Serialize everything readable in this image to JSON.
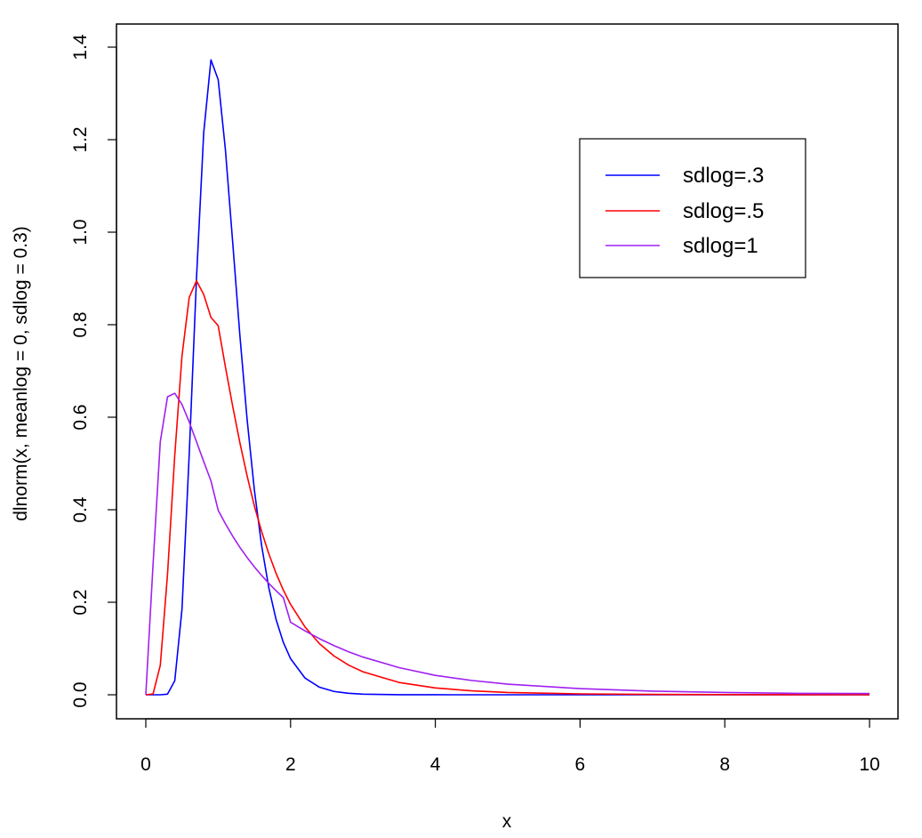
{
  "chart_data": {
    "type": "line",
    "title": "",
    "xlabel": "x",
    "ylabel": "dlnorm(x, meanlog = 0, sdlog = 0.3)",
    "xlim": [
      0,
      10
    ],
    "ylim": [
      0,
      1.4
    ],
    "xticks": [
      0,
      2,
      4,
      6,
      8,
      10
    ],
    "yticks": [
      0.0,
      0.2,
      0.4,
      0.6,
      0.8,
      1.0,
      1.2,
      1.4
    ],
    "xtick_labels": [
      "0",
      "2",
      "4",
      "6",
      "8",
      "10"
    ],
    "ytick_labels": [
      "0.0",
      "0.2",
      "0.4",
      "0.6",
      "0.8",
      "1.0",
      "1.2",
      "1.4"
    ],
    "grid": false,
    "legend": {
      "position": "top-right",
      "entries": [
        "sdlog=.3",
        "sdlog=.5",
        "sdlog=1"
      ]
    },
    "x": [
      0,
      0.1,
      0.2,
      0.3,
      0.4,
      0.5,
      0.6,
      0.7,
      0.8,
      0.9,
      1.0,
      1.1,
      1.2,
      1.3,
      1.4,
      1.5,
      1.6,
      1.7,
      1.8,
      1.9,
      2.0,
      2.2,
      2.4,
      2.6,
      2.8,
      3.0,
      3.5,
      4.0,
      4.5,
      5.0,
      6.0,
      7.0,
      8.0,
      9.0,
      10.0
    ],
    "series": [
      {
        "name": "sdlog=.3",
        "color": "#0000ff",
        "values": [
          0,
          0,
          1.6e-06,
          0.0014,
          0.0302,
          0.1851,
          0.5207,
          0.8995,
          1.2149,
          1.3725,
          1.3298,
          1.178,
          0.9789,
          0.7765,
          0.5945,
          0.4428,
          0.3226,
          0.2308,
          0.1627,
          0.1133,
          0.0781,
          0.0361,
          0.0163,
          0.0072,
          0.0032,
          0.0014,
          0.0002,
          4e-05,
          0,
          0,
          0,
          0,
          0,
          0,
          0
        ]
      },
      {
        "name": "sdlog=.5",
        "color": "#ff0000",
        "values": [
          0,
          0.0018,
          0.0635,
          0.2607,
          0.5176,
          0.7327,
          0.8591,
          0.8949,
          0.8654,
          0.8158,
          0.7979,
          0.7086,
          0.624,
          0.5448,
          0.4729,
          0.4081,
          0.3531,
          0.3046,
          0.2625,
          0.2264,
          0.1955,
          0.1465,
          0.1104,
          0.0839,
          0.0643,
          0.0497,
          0.0266,
          0.0148,
          0.0085,
          0.005,
          0.0019,
          0.0008,
          0.0004,
          0.0002,
          0.0001
        ]
      },
      {
        "name": "sdlog=1",
        "color": "#a020f0",
        "values": [
          0,
          0.2815,
          0.5471,
          0.6442,
          0.6518,
          0.6276,
          0.5897,
          0.5471,
          0.5042,
          0.4625,
          0.3989,
          0.3697,
          0.343,
          0.3187,
          0.2967,
          0.2765,
          0.258,
          0.2408,
          0.2249,
          0.2101,
          0.1569,
          0.1381,
          0.1212,
          0.1063,
          0.0931,
          0.0816,
          0.0586,
          0.0419,
          0.031,
          0.0229,
          0.0133,
          0.0079,
          0.0049,
          0.0031,
          0.0028
        ]
      }
    ]
  }
}
